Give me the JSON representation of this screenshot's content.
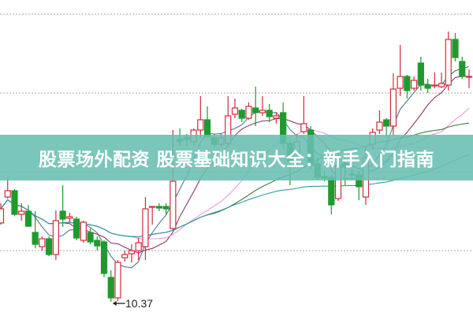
{
  "banner": {
    "title": "股票场外配资 股票基础知识大全：新手入门指南"
  },
  "chart_data": {
    "type": "candlestick",
    "title": "",
    "xlabel": "",
    "ylabel": "",
    "ylim": [
      10.19,
      14.2
    ],
    "grid": true,
    "colors": {
      "up": "#d42a3c",
      "down": "#1f9a2f",
      "grid": "#a8a8a8",
      "ma": [
        "#4c7d8e",
        "#8a3a6e",
        "#ec9be0",
        "#3f7a3a",
        "#2f9aa8"
      ]
    },
    "moving_average_periods": [
      5,
      10,
      20,
      30,
      60
    ],
    "low_annotation": {
      "label": "10.37",
      "index": 16
    },
    "ohlc": [
      [
        11.37,
        11.55,
        11.62,
        11.35
      ],
      [
        11.7,
        11.78,
        11.95,
        11.68
      ],
      [
        11.78,
        11.48,
        11.8,
        11.46
      ],
      [
        11.48,
        11.52,
        11.62,
        11.4
      ],
      [
        11.52,
        11.33,
        11.6,
        11.32
      ],
      [
        11.25,
        11.1,
        11.52,
        11.05
      ],
      [
        11.07,
        11.17,
        11.2,
        11.02
      ],
      [
        11.17,
        10.97,
        11.2,
        10.95
      ],
      [
        10.97,
        11.4,
        11.53,
        10.9
      ],
      [
        11.52,
        11.42,
        11.85,
        11.32
      ],
      [
        11.43,
        11.45,
        11.5,
        11.38
      ],
      [
        11.42,
        11.18,
        11.45,
        11.15
      ],
      [
        11.15,
        11.38,
        11.4,
        11.12
      ],
      [
        11.25,
        11.13,
        11.3,
        11.1
      ],
      [
        11.15,
        11.08,
        11.2,
        11.02
      ],
      [
        11.13,
        10.73,
        11.15,
        10.68
      ],
      [
        10.68,
        10.42,
        10.77,
        10.37
      ],
      [
        10.42,
        10.87,
        10.9,
        10.38
      ],
      [
        10.93,
        10.97,
        11.02,
        10.88
      ],
      [
        10.98,
        11.02,
        11.1,
        10.87
      ],
      [
        11.02,
        11.12,
        11.18,
        10.9
      ],
      [
        11.07,
        11.55,
        11.7,
        10.9
      ],
      [
        11.57,
        11.58,
        11.58,
        11.35
      ],
      [
        11.58,
        11.56,
        11.62,
        11.52
      ],
      [
        11.58,
        11.55,
        11.62,
        11.48
      ],
      [
        11.3,
        11.9,
        12.55,
        11.28
      ],
      [
        12.43,
        12.41,
        12.57,
        12.35
      ],
      [
        12.45,
        12.43,
        12.5,
        12.35
      ],
      [
        12.4,
        12.55,
        12.57,
        12.35
      ],
      [
        12.55,
        12.68,
        12.98,
        12.45
      ],
      [
        12.68,
        12.47,
        12.85,
        12.45
      ],
      [
        12.45,
        12.37,
        12.5,
        12.32
      ],
      [
        12.37,
        12.45,
        12.5,
        12.34
      ],
      [
        12.38,
        12.73,
        12.98,
        12.35
      ],
      [
        12.75,
        12.83,
        12.95,
        12.7
      ],
      [
        12.8,
        12.7,
        12.82,
        12.65
      ],
      [
        12.7,
        12.85,
        12.9,
        12.68
      ],
      [
        12.83,
        12.77,
        13.1,
        12.6
      ],
      [
        12.77,
        12.8,
        12.98,
        12.73
      ],
      [
        12.8,
        12.72,
        12.88,
        12.65
      ],
      [
        12.7,
        12.73,
        12.77,
        12.63
      ],
      [
        12.77,
        12.38,
        12.9,
        12.3
      ],
      [
        12.38,
        12.15,
        12.42,
        11.85
      ],
      [
        12.2,
        12.4,
        12.5,
        12.1
      ],
      [
        12.53,
        12.63,
        12.98,
        12.5
      ],
      [
        12.55,
        12.1,
        12.6,
        12.05
      ],
      [
        12.12,
        11.95,
        12.2,
        11.92
      ],
      [
        11.96,
        11.94,
        12.02,
        11.9
      ],
      [
        11.95,
        11.6,
        11.98,
        11.48
      ],
      [
        11.68,
        12.1,
        12.25,
        11.65
      ],
      [
        12.12,
        12.08,
        12.2,
        11.85
      ],
      [
        11.99,
        11.98,
        12.05,
        11.92
      ],
      [
        11.98,
        11.83,
        12.02,
        11.66
      ],
      [
        11.7,
        12.2,
        12.35,
        11.6
      ],
      [
        12.37,
        12.52,
        12.57,
        12.3
      ],
      [
        12.55,
        12.65,
        12.8,
        12.5
      ],
      [
        12.68,
        12.6,
        12.7,
        12.47
      ],
      [
        12.6,
        13.07,
        13.27,
        12.47
      ],
      [
        13.08,
        13.23,
        13.63,
        12.98
      ],
      [
        13.23,
        13.05,
        13.25,
        12.95
      ],
      [
        13.08,
        13.18,
        13.23,
        13.05
      ],
      [
        13.4,
        13.12,
        13.48,
        13.05
      ],
      [
        13.12,
        13.08,
        13.2,
        13.02
      ],
      [
        13.11,
        13.12,
        13.28,
        13.08
      ],
      [
        13.1,
        13.14,
        13.28,
        13.08
      ],
      [
        13.12,
        13.7,
        13.8,
        13.05
      ],
      [
        13.7,
        13.47,
        13.78,
        13.42
      ],
      [
        13.42,
        13.23,
        13.48,
        13.2
      ],
      [
        13.22,
        13.23,
        13.32,
        13.08
      ]
    ]
  }
}
